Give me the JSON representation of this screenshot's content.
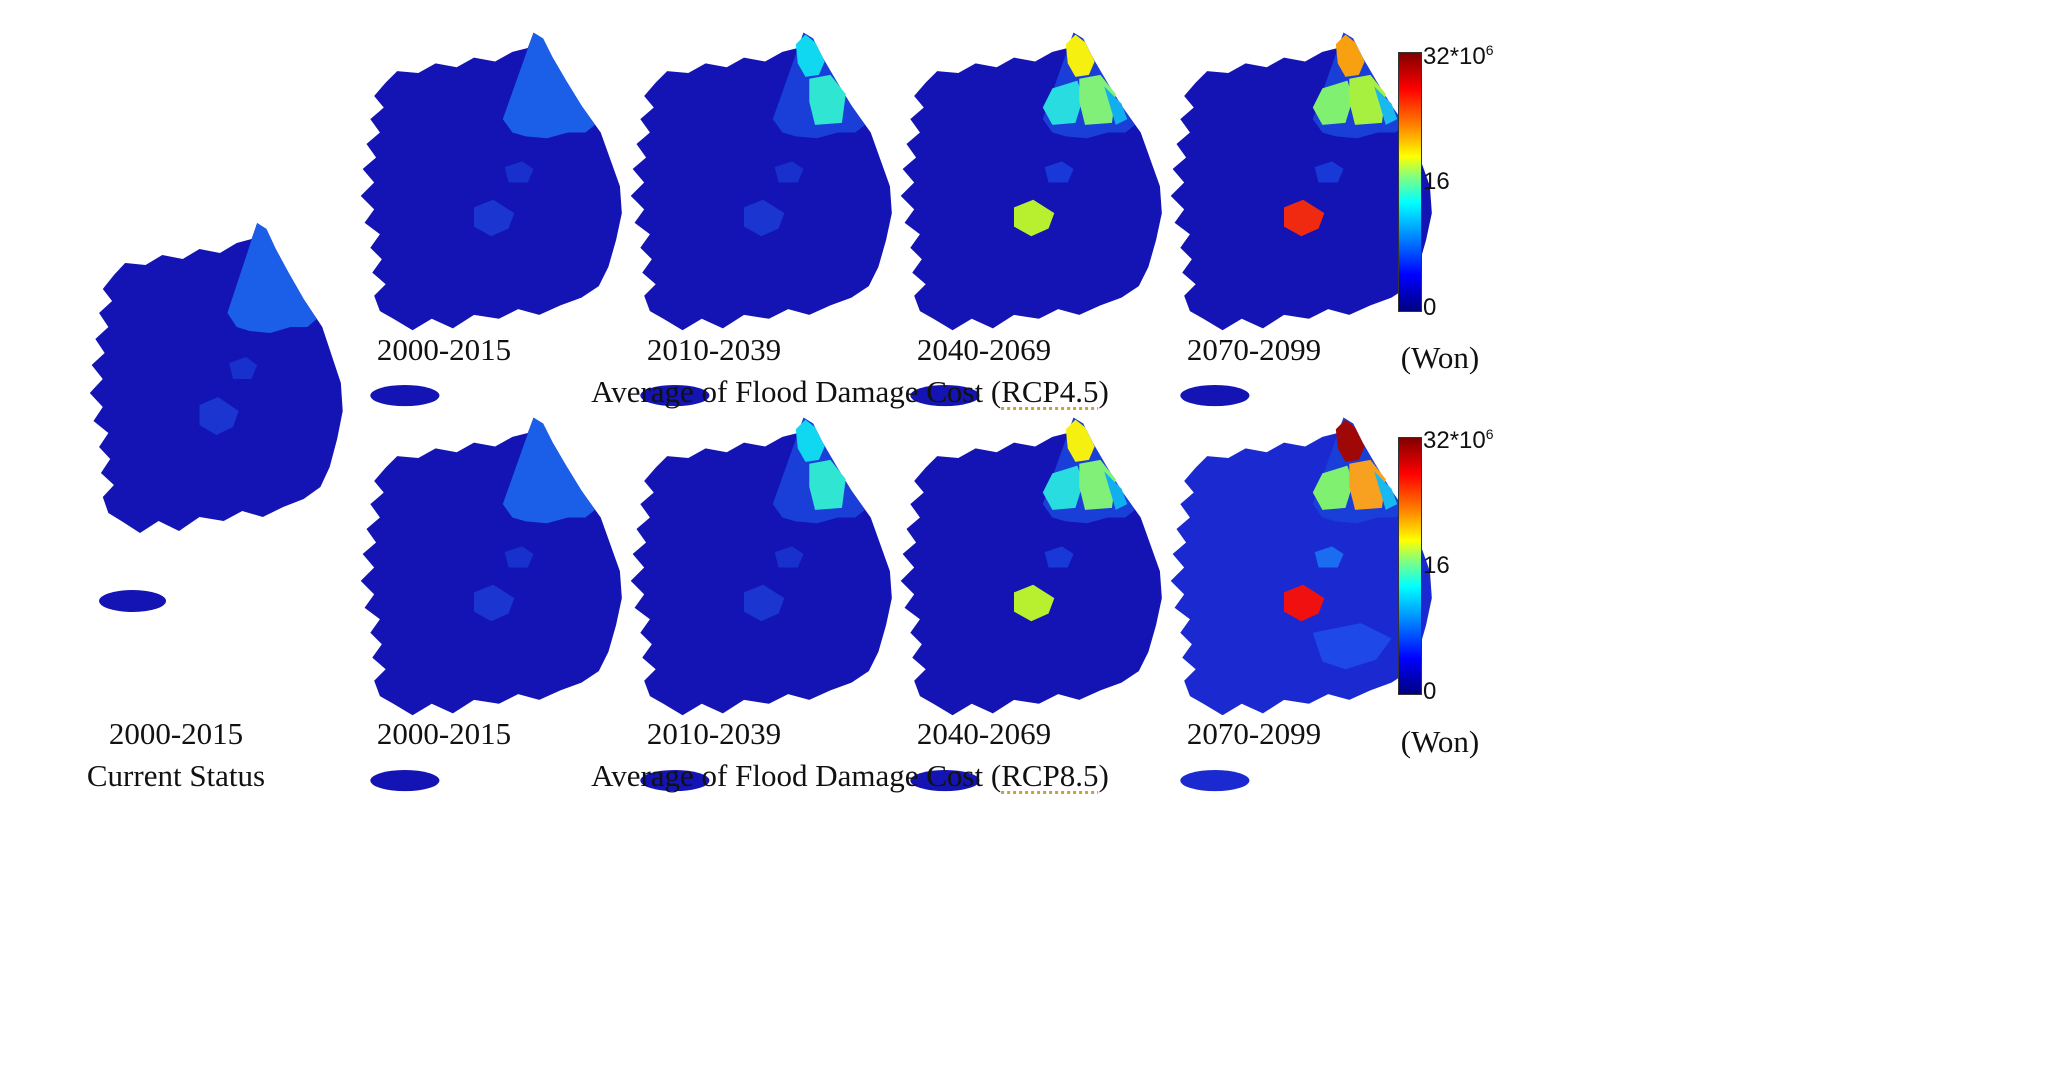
{
  "figure": {
    "current": {
      "period": "2000-2015",
      "caption": "Current Status"
    },
    "rows": [
      {
        "caption_prefix": "Average of Flood Damage Cost (",
        "caption_scenario": "RCP4.5",
        "caption_suffix": ")",
        "periods": [
          "2000-2015",
          "2010-2039",
          "2040-2069",
          "2070-2099"
        ],
        "colorbar": {
          "max_label": "32*10",
          "max_exp": "6",
          "mid_label": "16",
          "min_label": "0",
          "unit": "(Won)"
        }
      },
      {
        "caption_prefix": "Average of Flood Damage Cost (",
        "caption_scenario": "RCP8.5",
        "caption_suffix": ")",
        "periods": [
          "2000-2015",
          "2010-2039",
          "2040-2069",
          "2070-2099"
        ],
        "colorbar": {
          "max_label": "32*10",
          "max_exp": "6",
          "mid_label": "16",
          "min_label": "0",
          "unit": "(Won)"
        }
      }
    ]
  },
  "colors": {
    "base": "#1414b4",
    "dark_base": "#0b0b8c",
    "mid_blue": "#1f45e6",
    "island": "#0a0a80"
  }
}
